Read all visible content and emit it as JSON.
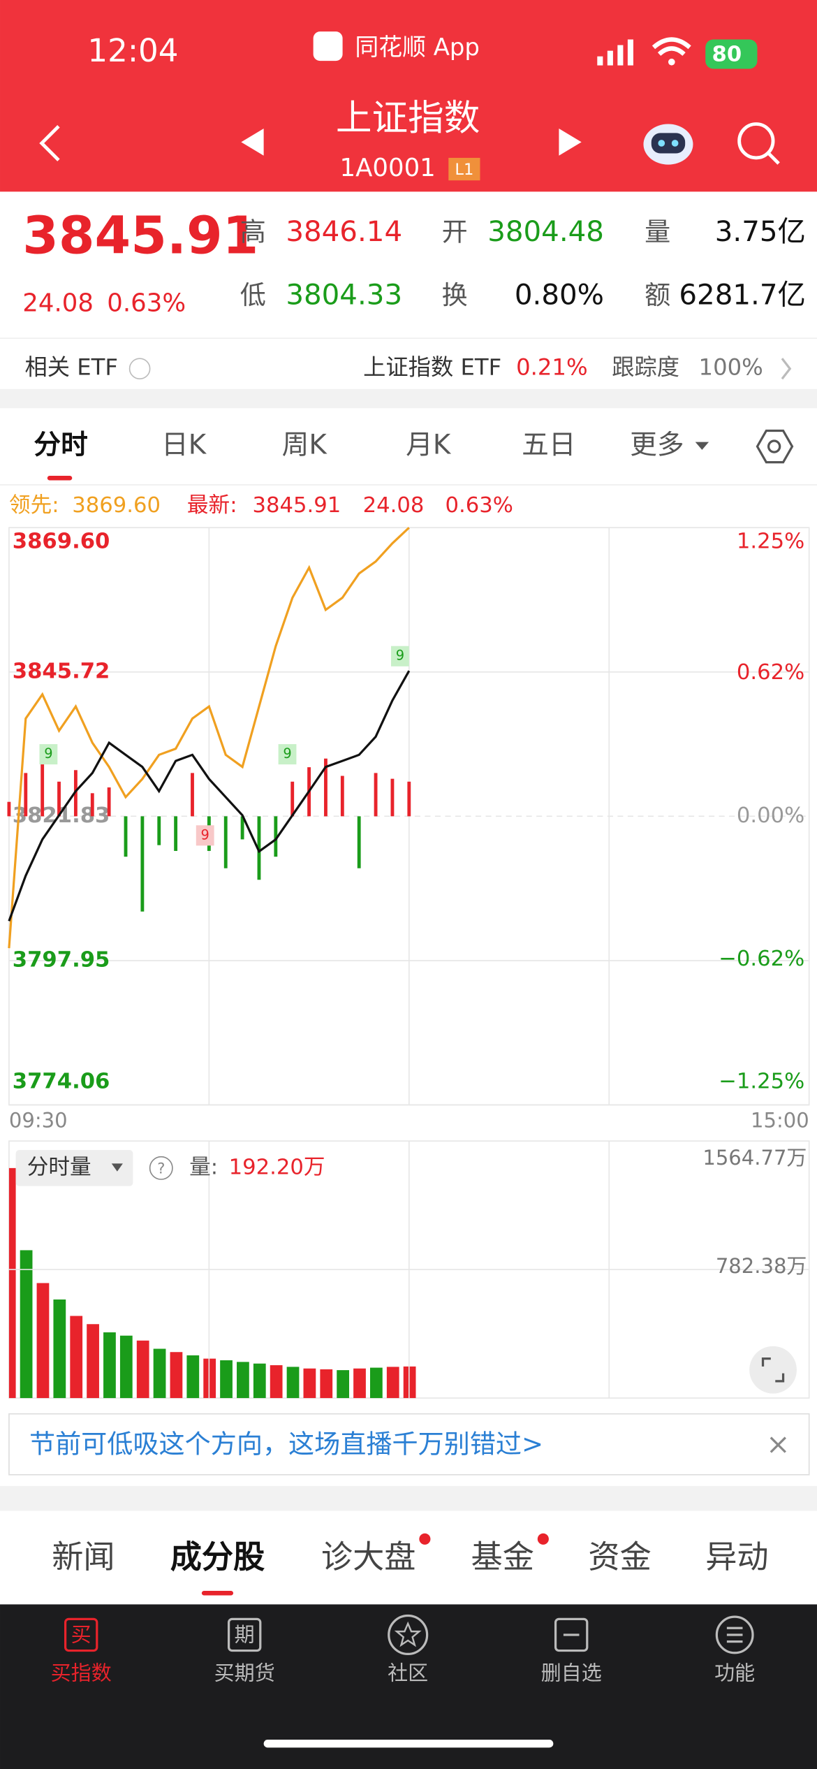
{
  "status": {
    "time": "12:04",
    "app": "同花顺 App",
    "battery": "80"
  },
  "header": {
    "title": "上证指数",
    "code": "1A0001",
    "level": "L1"
  },
  "quote": {
    "price": "3845.91",
    "change": "24.08",
    "pct": "0.63%",
    "fields": [
      {
        "label": "高",
        "value": "3846.14",
        "color": "#e8232b"
      },
      {
        "label": "开",
        "value": "3804.48",
        "color": "#1a9c1a"
      },
      {
        "label": "量",
        "value": "3.75亿",
        "color": "#111111"
      },
      {
        "label": "低",
        "value": "3804.33",
        "color": "#1a9c1a"
      },
      {
        "label": "换",
        "value": "0.80%",
        "color": "#111111"
      },
      {
        "label": "额",
        "value": "6281.7亿",
        "color": "#111111"
      }
    ]
  },
  "etf": {
    "label": "相关 ETF",
    "name": "上证指数 ETF",
    "pct": "0.21%",
    "tracking_label": "跟踪度",
    "tracking": "100%"
  },
  "tabs": [
    "分时",
    "日K",
    "周K",
    "月K",
    "五日",
    "更多"
  ],
  "chart_data": [
    {
      "type": "line",
      "header": {
        "leader_label": "领先:",
        "leader": "3869.60",
        "latest_label": "最新:",
        "latest": "3845.91",
        "change": "24.08",
        "pct": "0.63%"
      },
      "x": [
        0,
        5,
        10,
        15,
        20,
        25,
        30,
        35,
        40,
        45,
        50,
        55,
        60,
        65,
        70,
        75,
        80,
        85,
        90,
        95,
        100,
        105,
        110,
        115,
        120
      ],
      "xlim": [
        0,
        240
      ],
      "xticks": [
        {
          "value": 0,
          "label": "09:30"
        },
        {
          "value": 240,
          "label": "15:00"
        }
      ],
      "xgrid": [
        60,
        120,
        180
      ],
      "ylim": [
        3774.06,
        3869.6
      ],
      "yticks": [
        {
          "value": 3869.6,
          "label": "3869.60"
        },
        3845.72,
        3821.83,
        3797.95,
        3774.06
      ],
      "y2lim": [
        -1.25,
        1.25
      ],
      "y2ticks": [
        {
          "value": 1.25,
          "label": "1.25%"
        },
        {
          "value": 0.62,
          "label": "0.62%"
        },
        {
          "value": 0,
          "label": "0.00%"
        },
        {
          "value": -0.62,
          "label": "−0.62%"
        },
        {
          "value": -1.25,
          "label": "−1.25%"
        }
      ],
      "series": [
        {
          "color": "#f0a020",
          "values": [
            3800,
            3838,
            3842,
            3836,
            3840,
            3834,
            3830,
            3825,
            3828,
            3832,
            3833,
            3838,
            3840,
            3832,
            3830,
            3840,
            3850,
            3858,
            3863,
            3856,
            3858,
            3862,
            3864,
            3867,
            3869.6
          ]
        },
        {
          "color": "#111111",
          "values": [
            3804.5,
            3812,
            3818,
            3822,
            3826,
            3829,
            3834,
            3832,
            3830,
            3826,
            3831,
            3832,
            3828,
            3825,
            3822,
            3816,
            3818,
            3822,
            3826,
            3830,
            3831,
            3832,
            3835,
            3841,
            3845.91
          ]
        }
      ],
      "bar_values": [
        5,
        15,
        18,
        12,
        16,
        8,
        10,
        -14,
        -33,
        -10,
        -12,
        15,
        -12,
        -18,
        -8,
        -22,
        -14,
        12,
        17,
        20,
        14,
        -18,
        15,
        13,
        12
      ],
      "bar_ylim": [
        -100,
        100
      ],
      "up_color": "#e8232b",
      "down_color": "#1a9c1a",
      "markers": [
        "9",
        "9",
        "9",
        "9"
      ],
      "grid": true
    },
    {
      "type": "bar",
      "title": "分时量",
      "value_label": "量:",
      "value": "192.20万",
      "x": [
        0,
        5,
        10,
        15,
        20,
        25,
        30,
        35,
        40,
        45,
        50,
        55,
        60,
        65,
        70,
        75,
        80,
        85,
        90,
        95,
        100,
        105,
        110,
        115,
        120
      ],
      "xlim": [
        0,
        240
      ],
      "values": [
        1400,
        900,
        700,
        600,
        500,
        450,
        400,
        380,
        350,
        300,
        280,
        260,
        240,
        230,
        220,
        210,
        200,
        190,
        180,
        175,
        170,
        180,
        185,
        190,
        192.2
      ],
      "colors": [
        "#e8232b",
        "#1a9c1a",
        "#e8232b",
        "#1a9c1a",
        "#e8232b",
        "#e8232b",
        "#1a9c1a",
        "#1a9c1a",
        "#e8232b",
        "#1a9c1a",
        "#e8232b",
        "#1a9c1a",
        "#e8232b",
        "#1a9c1a",
        "#1a9c1a",
        "#1a9c1a",
        "#e8232b",
        "#1a9c1a",
        "#e8232b",
        "#e8232b",
        "#1a9c1a",
        "#e8232b",
        "#1a9c1a",
        "#e8232b",
        "#e8232b"
      ],
      "ylim": [
        0,
        1564.77
      ],
      "yticks": [
        {
          "value": 782.38,
          "label": "782.38万"
        },
        {
          "value": 1564.77,
          "label": "1564.77万"
        }
      ]
    }
  ],
  "banner": "节前可低吸这个方向，这场直播千万别错过>",
  "bottom_tabs": [
    "新闻",
    "成分股",
    "诊大盘",
    "基金",
    "资金",
    "异动"
  ],
  "nav": [
    {
      "icon": "买",
      "label": "买指数"
    },
    {
      "icon": "期",
      "label": "买期货"
    },
    {
      "label": "社区"
    },
    {
      "label": "删自选"
    },
    {
      "label": "功能"
    }
  ]
}
